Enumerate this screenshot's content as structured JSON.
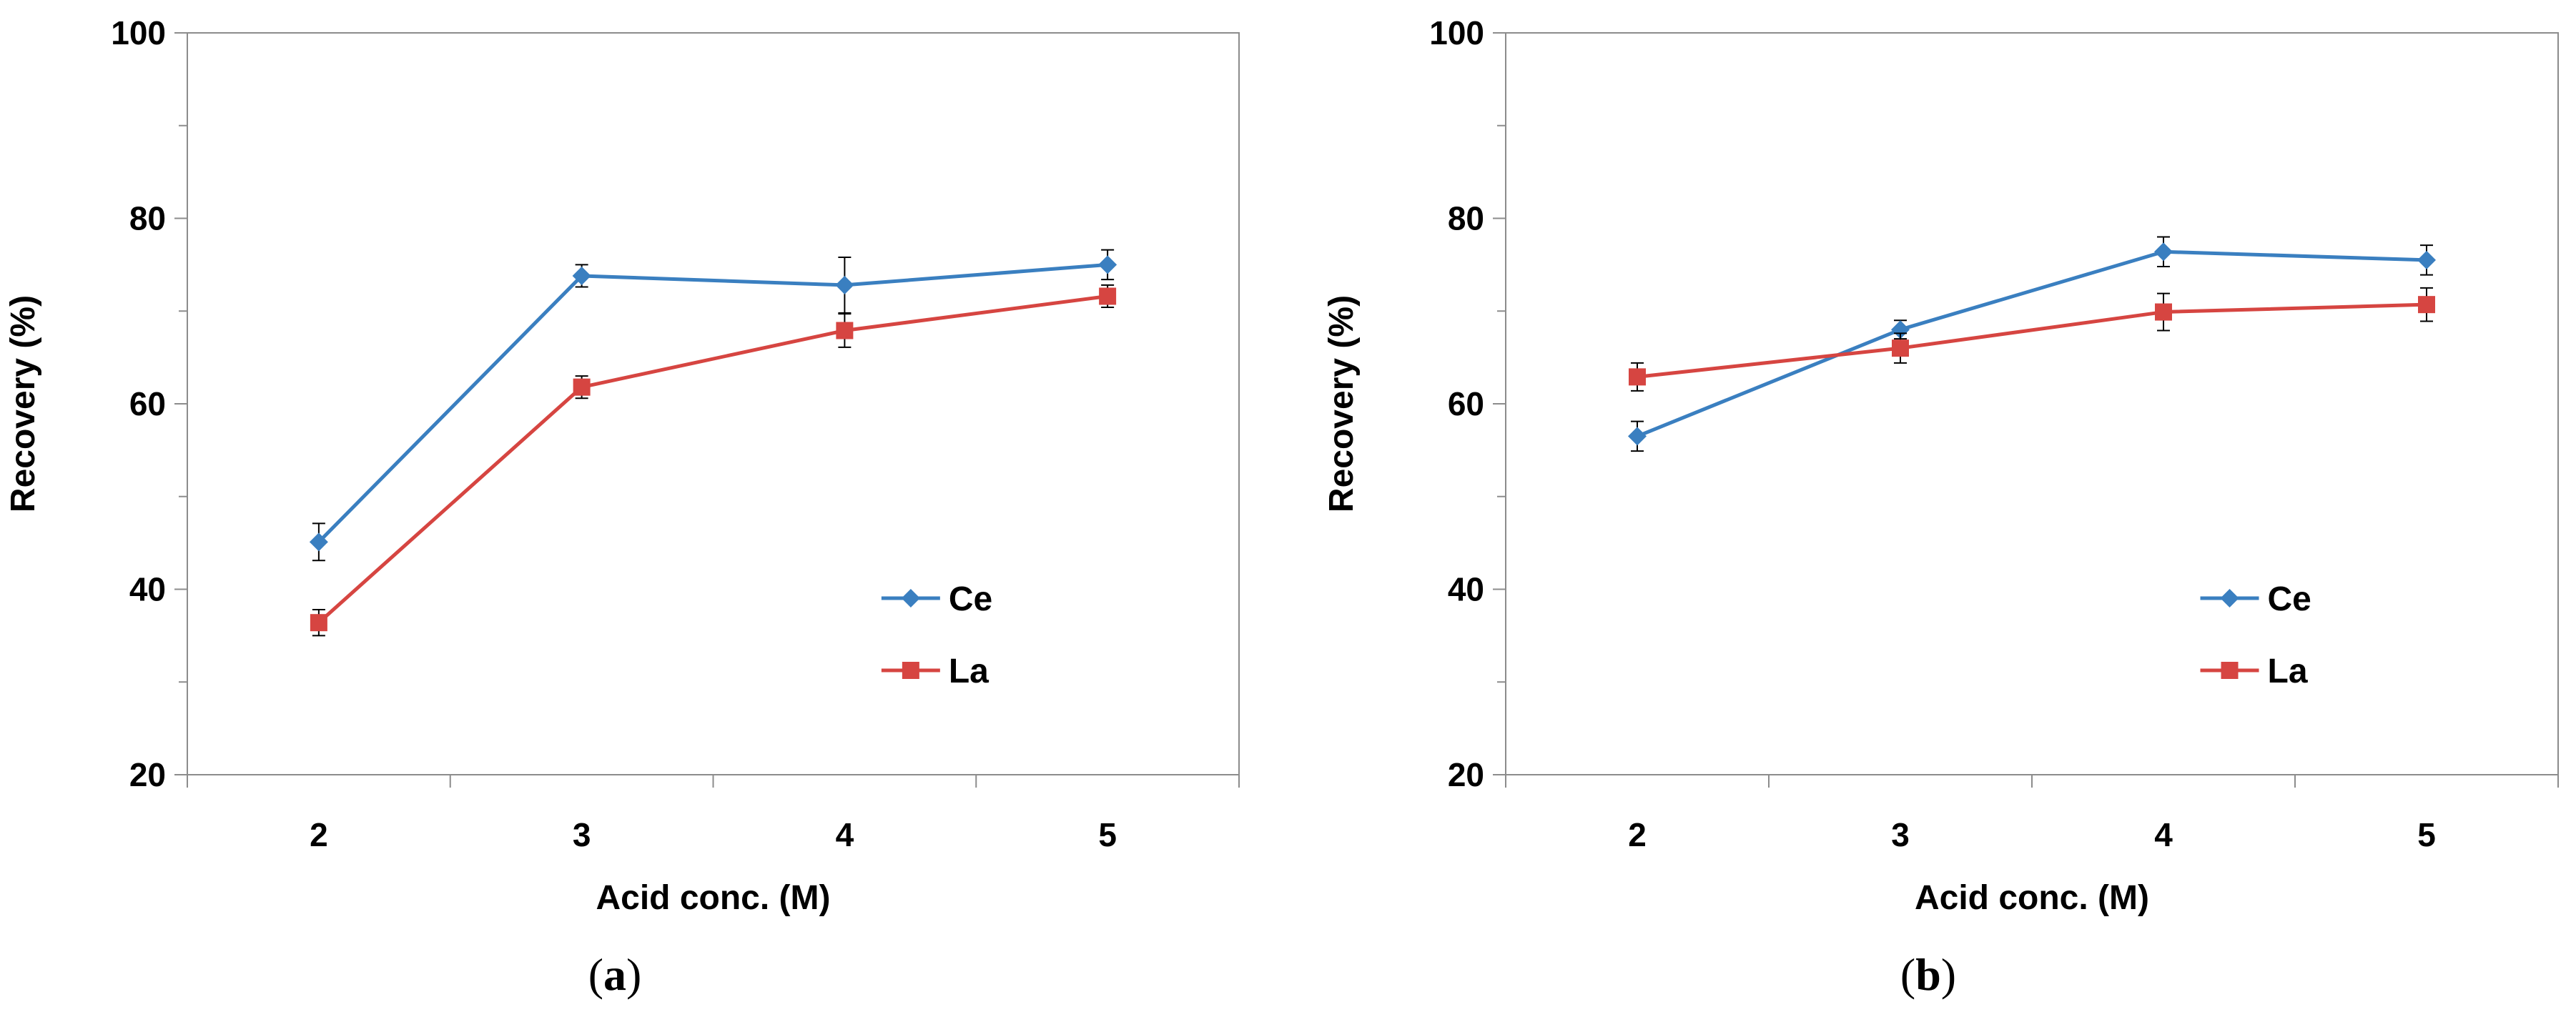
{
  "chart_data": [
    {
      "type": "line",
      "caption": {
        "open": "(",
        "letter": "a",
        "close": ")"
      },
      "xlabel": "Acid conc. (M)",
      "ylabel": "Recovery (%)",
      "categories": [
        "2",
        "3",
        "4",
        "5"
      ],
      "x": [
        2,
        3,
        4,
        5
      ],
      "ylim": [
        20,
        100
      ],
      "yticks": [
        20,
        40,
        60,
        80,
        100
      ],
      "legend_position": "lower-right",
      "series": [
        {
          "name": "Ce",
          "color": "#3a7fc0",
          "marker": "diamond",
          "values": [
            45.1,
            73.8,
            72.8,
            75.0
          ],
          "errors": [
            2.0,
            1.2,
            3.0,
            1.6
          ]
        },
        {
          "name": "La",
          "color": "#d64541",
          "marker": "square",
          "values": [
            36.4,
            61.8,
            67.9,
            71.6
          ],
          "errors": [
            1.4,
            1.2,
            1.8,
            1.2
          ]
        }
      ]
    },
    {
      "type": "line",
      "caption": {
        "open": "(",
        "letter": "b",
        "close": ")"
      },
      "xlabel": "Acid conc. (M)",
      "ylabel": "Recovery (%)",
      "categories": [
        "2",
        "3",
        "4",
        "5"
      ],
      "x": [
        2,
        3,
        4,
        5
      ],
      "ylim": [
        20,
        100
      ],
      "yticks": [
        20,
        40,
        60,
        80,
        100
      ],
      "legend_position": "lower-right",
      "series": [
        {
          "name": "Ce",
          "color": "#3a7fc0",
          "marker": "diamond",
          "values": [
            56.5,
            68.0,
            76.4,
            75.5
          ],
          "errors": [
            1.6,
            1.0,
            1.6,
            1.6
          ]
        },
        {
          "name": "La",
          "color": "#d64541",
          "marker": "square",
          "values": [
            62.9,
            66.0,
            69.9,
            70.7
          ],
          "errors": [
            1.5,
            1.6,
            2.0,
            1.8
          ]
        }
      ]
    }
  ]
}
